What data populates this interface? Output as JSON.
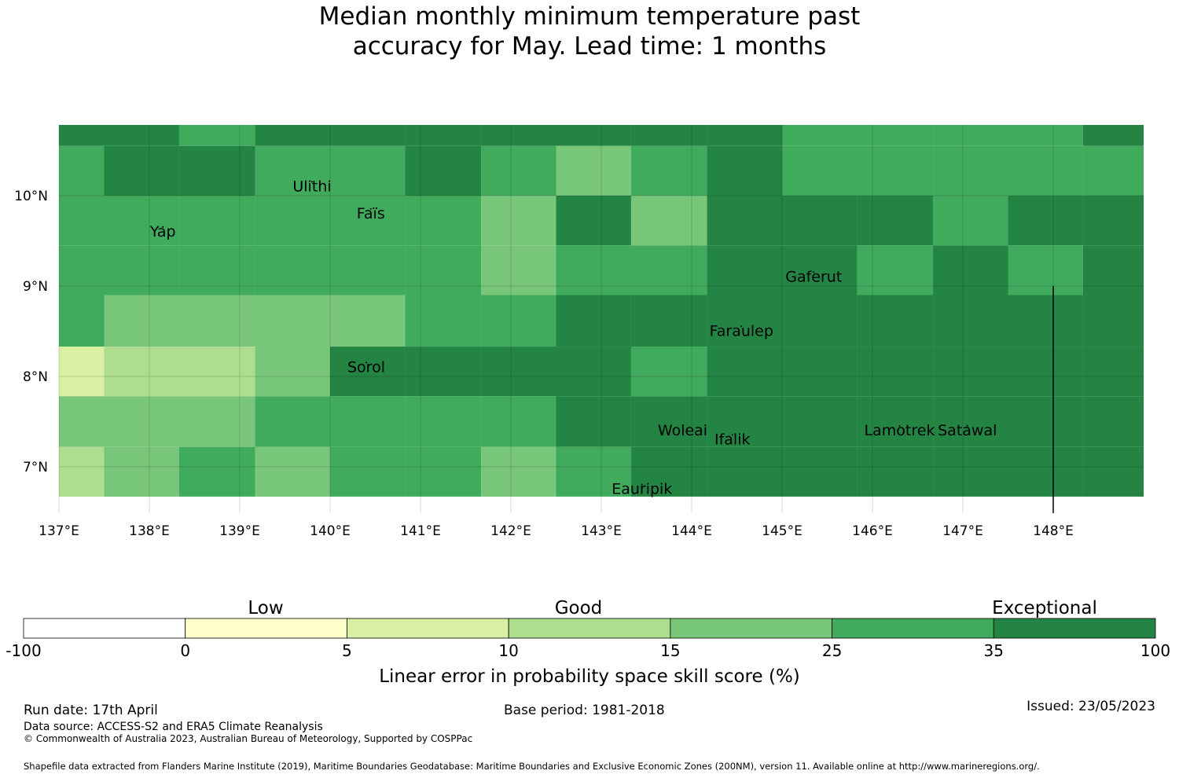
{
  "title": {
    "line1": "Median monthly minimum temperature past",
    "line2": "accuracy for May. Lead time: 1 months"
  },
  "map": {
    "lon_range": [
      137,
      149
    ],
    "lat_range": [
      6.5,
      10.8
    ],
    "lon_ticks": [
      {
        "value": 137,
        "label": "137°E"
      },
      {
        "value": 138,
        "label": "138°E"
      },
      {
        "value": 139,
        "label": "139°E"
      },
      {
        "value": 140,
        "label": "140°E"
      },
      {
        "value": 141,
        "label": "141°E"
      },
      {
        "value": 142,
        "label": "142°E"
      },
      {
        "value": 143,
        "label": "143°E"
      },
      {
        "value": 144,
        "label": "144°E"
      },
      {
        "value": 145,
        "label": "145°E"
      },
      {
        "value": 146,
        "label": "146°E"
      },
      {
        "value": 147,
        "label": "147°E"
      },
      {
        "value": 148,
        "label": "148°E"
      }
    ],
    "lat_ticks": [
      {
        "value": 10,
        "label": "10°N"
      },
      {
        "value": 9,
        "label": "9°N"
      },
      {
        "value": 8,
        "label": "8°N"
      },
      {
        "value": 7,
        "label": "7°N"
      }
    ],
    "grid_lon_edges": [
      137,
      137.5,
      138.33,
      139.17,
      140,
      140.83,
      141.67,
      142.5,
      143.33,
      144.17,
      145,
      145.83,
      146.67,
      147.5,
      148.33,
      149
    ],
    "grid_lat_edges": [
      10.8,
      10.55,
      10.0,
      9.45,
      8.9,
      8.33,
      7.78,
      7.22,
      6.67,
      6.5
    ],
    "skill_classes": [
      [
        6,
        6,
        5,
        6,
        6,
        6,
        6,
        6,
        6,
        6,
        5,
        5,
        5,
        5,
        6
      ],
      [
        5,
        6,
        6,
        5,
        5,
        6,
        5,
        4,
        5,
        6,
        5,
        5,
        5,
        5,
        5
      ],
      [
        5,
        5,
        5,
        5,
        5,
        5,
        4,
        6,
        4,
        6,
        6,
        6,
        5,
        6,
        6
      ],
      [
        5,
        5,
        5,
        5,
        5,
        5,
        4,
        5,
        5,
        6,
        6,
        5,
        6,
        5,
        6
      ],
      [
        5,
        4,
        4,
        4,
        4,
        5,
        5,
        6,
        6,
        6,
        6,
        6,
        6,
        6,
        6
      ],
      [
        2,
        3,
        3,
        4,
        6,
        6,
        6,
        6,
        5,
        6,
        6,
        6,
        6,
        6,
        6
      ],
      [
        4,
        4,
        4,
        5,
        5,
        5,
        5,
        6,
        6,
        6,
        6,
        6,
        6,
        6,
        6
      ],
      [
        3,
        4,
        5,
        4,
        5,
        5,
        4,
        5,
        6,
        6,
        6,
        6,
        6,
        6,
        6
      ]
    ],
    "islands": [
      {
        "name": "Ulithi",
        "lon": 139.8,
        "lat": 10.05
      },
      {
        "name": "Faïs",
        "lon": 140.45,
        "lat": 9.75
      },
      {
        "name": "Yap",
        "lon": 138.15,
        "lat": 9.55
      },
      {
        "name": "Gaferut",
        "lon": 145.35,
        "lat": 9.05
      },
      {
        "name": "Faraulep",
        "lon": 144.55,
        "lat": 8.45
      },
      {
        "name": "Sorol",
        "lon": 140.4,
        "lat": 8.05
      },
      {
        "name": "Woleai",
        "lon": 143.9,
        "lat": 7.35
      },
      {
        "name": "Ifalik",
        "lon": 144.45,
        "lat": 7.25
      },
      {
        "name": "Lamotrek",
        "lon": 146.3,
        "lat": 7.35
      },
      {
        "name": "Satawal",
        "lon": 147.05,
        "lat": 7.35
      },
      {
        "name": "Eauripik",
        "lon": 143.45,
        "lat": 6.7
      }
    ],
    "boundary_lon": 148,
    "boundary_lat_range": [
      6.5,
      9.0
    ]
  },
  "legend": {
    "colors": [
      "#ffffff",
      "#ffffcc",
      "#d9f0a3",
      "#addd8e",
      "#78c679",
      "#41ab5d",
      "#238443"
    ],
    "tick_labels": [
      "-100",
      "0",
      "5",
      "10",
      "15",
      "25",
      "35",
      "100"
    ],
    "category_labels": {
      "low": "Low",
      "good": "Good",
      "exceptional": "Exceptional"
    },
    "axis_label": "Linear error in probability space skill score (%)"
  },
  "footer": {
    "run_date": "Run date: 17th April",
    "base_period": "Base period: 1981-2018",
    "issued": "Issued: 23/05/2023",
    "data_source": "Data source: ACCESS-S2 and ERA5 Climate Reanalysis",
    "copyright": "© Commonwealth of Australia 2023, Australian Bureau of Meteorology, Supported by COSPPac",
    "shapefile": "Shapefile data extracted from Flanders Marine Institute (2019), Maritime Boundaries Geodatabase: Maritime Boundaries and Exclusive Economic Zones (200NM), version 11. Available online at http://www.marineregions.org/."
  }
}
